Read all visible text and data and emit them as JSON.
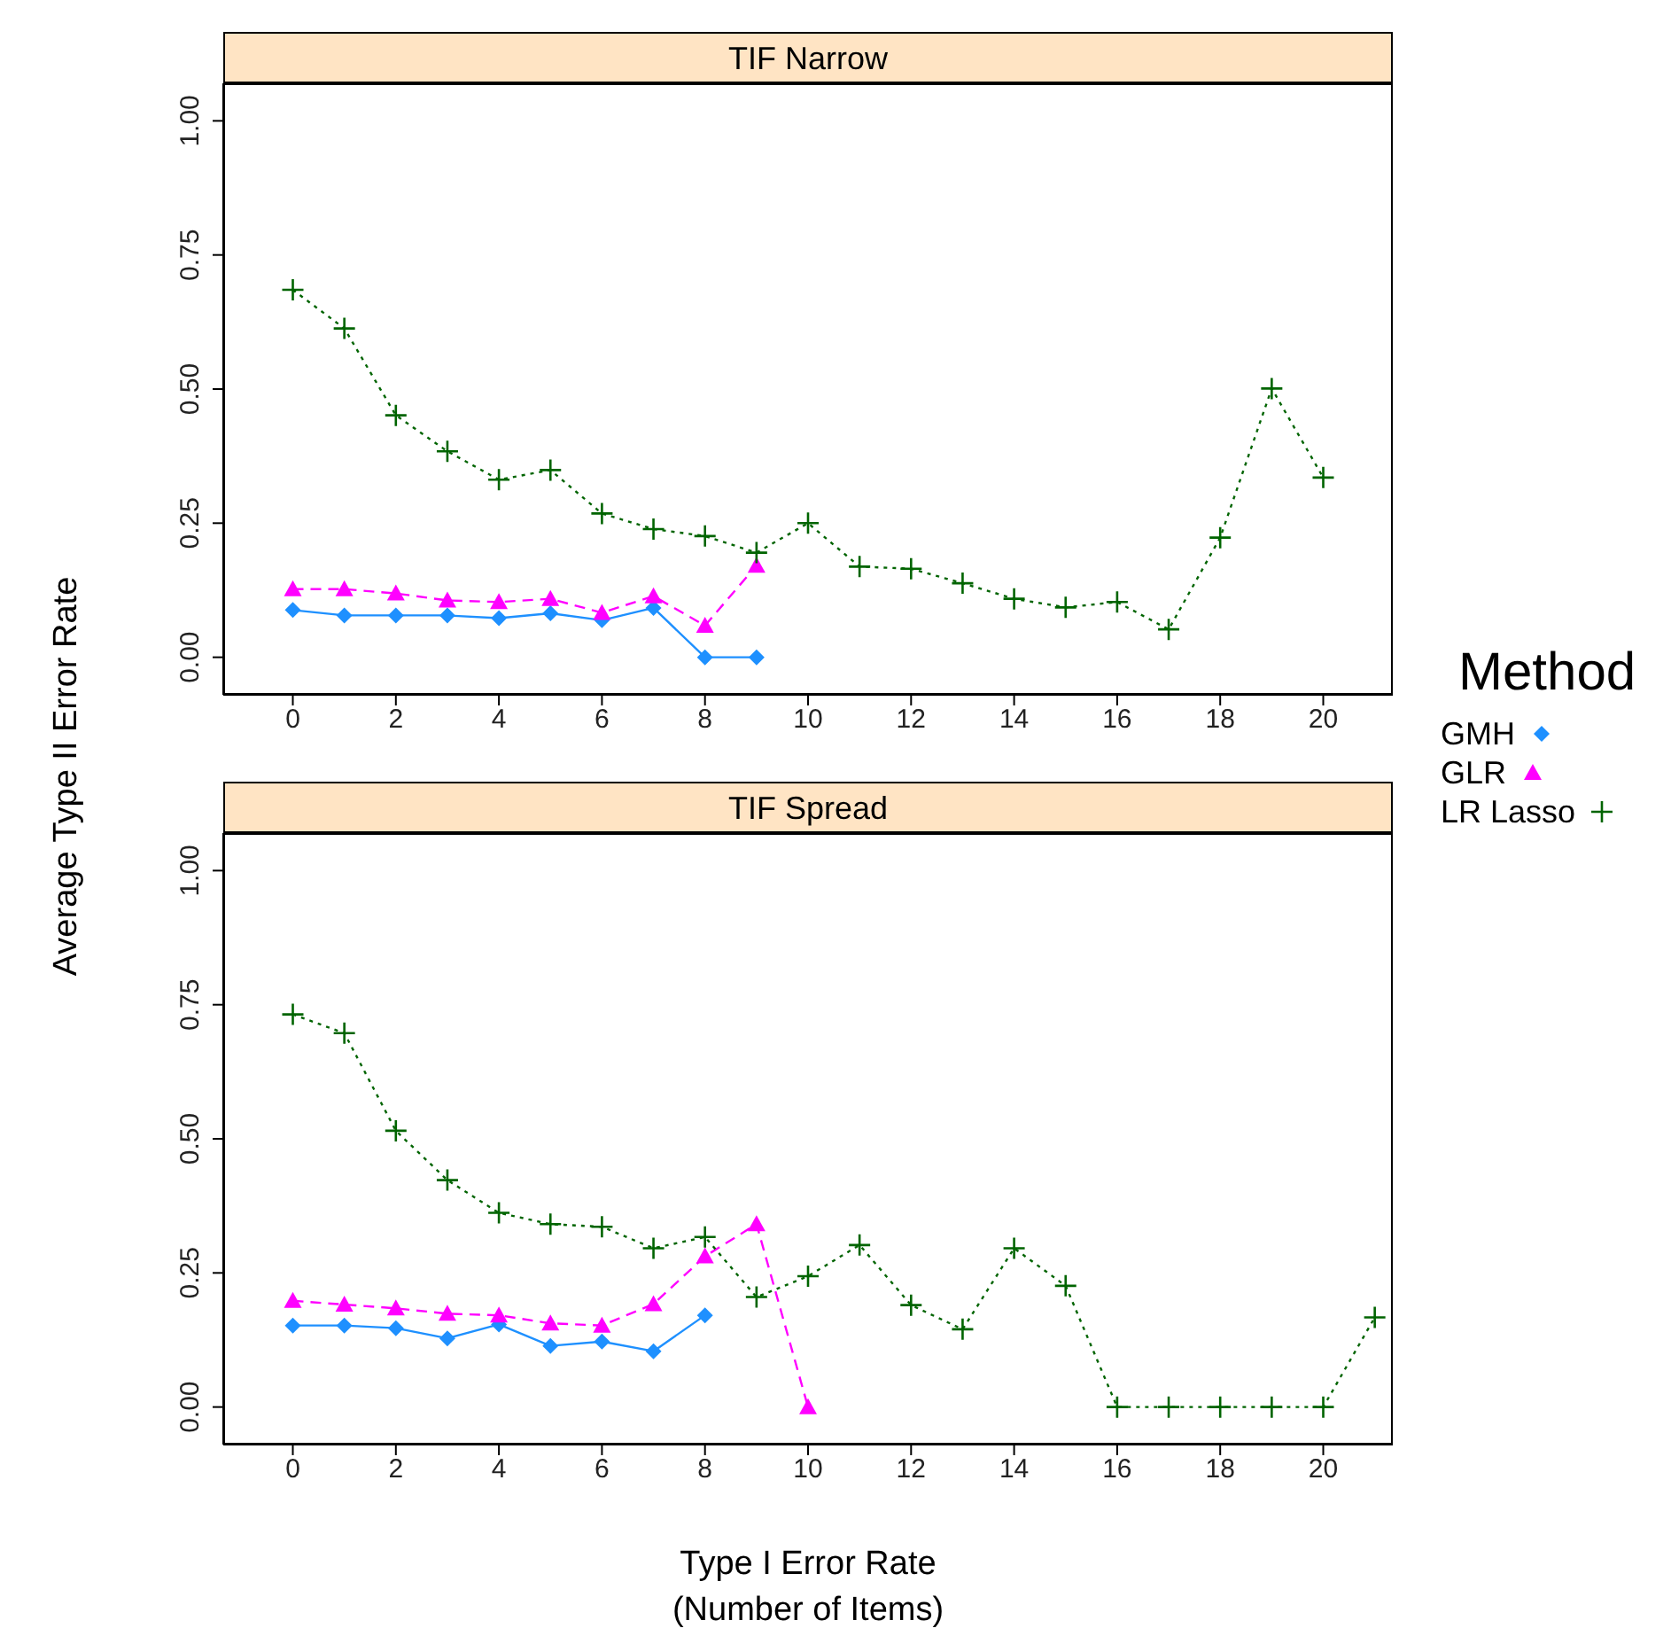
{
  "chart_data": [
    {
      "type": "line",
      "title": "TIF Narrow",
      "ylabel": "Average Type II Error Rate",
      "legend_title": "Method",
      "legend": "right",
      "xlim": [
        -1.35,
        21.35
      ],
      "xticks": [
        0,
        2,
        4,
        6,
        8,
        10,
        12,
        14,
        16,
        18,
        20
      ],
      "ylim": [
        -0.07,
        1.07
      ],
      "yticks": [
        {
          "value": 0,
          "label": "0.00"
        },
        {
          "value": 0.25,
          "label": "0.25"
        },
        {
          "value": 0.5,
          "label": "0.50"
        },
        {
          "value": 0.75,
          "label": "0.75"
        },
        {
          "value": 1,
          "label": "1.00"
        }
      ],
      "series": [
        {
          "name": "GMH",
          "color": "#1e90ff",
          "marker": "diamond",
          "line_style": "solid",
          "x": [
            0,
            1,
            2,
            3,
            4,
            5,
            6,
            7,
            8,
            9
          ],
          "values": [
            0.088,
            0.078,
            0.078,
            0.078,
            0.073,
            0.082,
            0.069,
            0.092,
            0,
            0
          ]
        },
        {
          "name": "GLR",
          "color": "#ff00ff",
          "marker": "triangle",
          "line_style": "dashed",
          "x": [
            0,
            1,
            2,
            3,
            4,
            5,
            6,
            7,
            8,
            9
          ],
          "values": [
            0.127,
            0.127,
            0.119,
            0.106,
            0.103,
            0.109,
            0.083,
            0.114,
            0.059,
            0.171
          ]
        },
        {
          "name": "LR Lasso",
          "color": "#006400",
          "marker": "cross",
          "line_style": "dotted",
          "x": [
            0,
            1,
            2,
            3,
            4,
            5,
            6,
            7,
            8,
            9,
            10,
            11,
            12,
            13,
            14,
            15,
            16,
            17,
            18,
            19,
            20
          ],
          "values": [
            0.685,
            0.613,
            0.451,
            0.384,
            0.331,
            0.349,
            0.268,
            0.239,
            0.226,
            0.195,
            0.25,
            0.169,
            0.165,
            0.138,
            0.109,
            0.093,
            0.103,
            0.052,
            0.223,
            0.501,
            0.335
          ]
        }
      ]
    },
    {
      "type": "line",
      "title": "TIF Spread",
      "xlabel": "Type I Error Rate\n(Number of Items)",
      "xlim": [
        -1.35,
        21.35
      ],
      "xticks": [
        0,
        2,
        4,
        6,
        8,
        10,
        12,
        14,
        16,
        18,
        20
      ],
      "ylim": [
        -0.07,
        1.07
      ],
      "yticks": [
        {
          "value": 0,
          "label": "0.00"
        },
        {
          "value": 0.25,
          "label": "0.25"
        },
        {
          "value": 0.5,
          "label": "0.50"
        },
        {
          "value": 0.75,
          "label": "0.75"
        },
        {
          "value": 1,
          "label": "1.00"
        }
      ],
      "series": [
        {
          "color": "#1e90ff",
          "marker": "diamond",
          "line_style": "solid",
          "x": [
            0,
            1,
            2,
            3,
            4,
            5,
            6,
            7,
            8
          ],
          "values": [
            0.152,
            0.152,
            0.147,
            0.128,
            0.154,
            0.114,
            0.122,
            0.104,
            0.171
          ]
        },
        {
          "color": "#ff00ff",
          "marker": "triangle",
          "line_style": "dashed",
          "x": [
            0,
            1,
            2,
            3,
            4,
            5,
            6,
            7,
            8,
            9,
            10
          ],
          "values": [
            0.198,
            0.191,
            0.184,
            0.174,
            0.171,
            0.156,
            0.152,
            0.192,
            0.281,
            0.341,
            0
          ]
        },
        {
          "color": "#006400",
          "marker": "cross",
          "line_style": "dotted",
          "x": [
            0,
            1,
            2,
            3,
            4,
            5,
            6,
            7,
            8,
            9,
            10,
            11,
            12,
            13,
            14,
            15,
            16,
            17,
            18,
            19,
            20,
            21
          ],
          "values": [
            0.732,
            0.697,
            0.515,
            0.423,
            0.362,
            0.341,
            0.336,
            0.296,
            0.317,
            0.205,
            0.244,
            0.302,
            0.19,
            0.145,
            0.296,
            0.226,
            0,
            0,
            0,
            0,
            0,
            0.167
          ]
        }
      ]
    }
  ]
}
